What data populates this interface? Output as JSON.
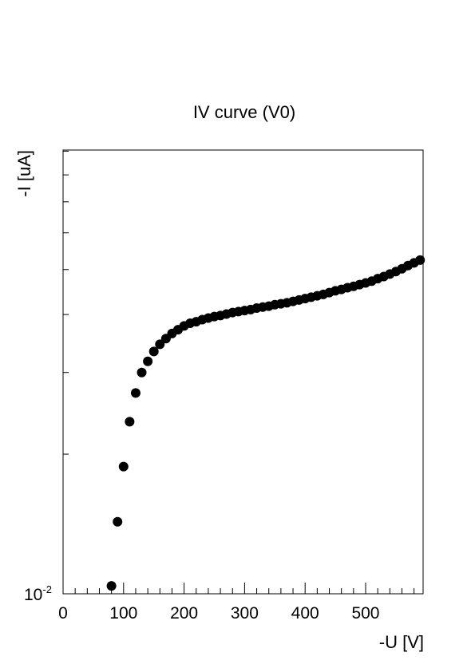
{
  "chart_data": {
    "type": "scatter",
    "title": "IV curve (V0)",
    "xlabel": "-U [V]",
    "ylabel": "-I [uA]",
    "xlim": [
      0,
      595
    ],
    "ylim": [
      0.01,
      0.0905
    ],
    "y_scale": "log",
    "grid": false,
    "legend": "none",
    "marker_color": "#000000",
    "x_ticks": [
      "0",
      "100",
      "200",
      "300",
      "400",
      "500"
    ],
    "y_tick_label": {
      "base": "10",
      "exponent": "-2"
    },
    "x": [
      80,
      90,
      100,
      110,
      120,
      130,
      140,
      150,
      160,
      170,
      180,
      190,
      200,
      210,
      220,
      230,
      240,
      250,
      260,
      270,
      280,
      290,
      300,
      310,
      320,
      330,
      340,
      350,
      360,
      370,
      380,
      390,
      400,
      410,
      420,
      430,
      440,
      450,
      460,
      470,
      480,
      490,
      500,
      510,
      520,
      530,
      540,
      550,
      560,
      570,
      580,
      590
    ],
    "y": [
      0.0104,
      0.0143,
      0.0188,
      0.0235,
      0.0271,
      0.03,
      0.0317,
      0.0333,
      0.0345,
      0.0355,
      0.0364,
      0.0371,
      0.0378,
      0.0383,
      0.0386,
      0.039,
      0.0393,
      0.0396,
      0.0398,
      0.0401,
      0.0404,
      0.0406,
      0.0408,
      0.041,
      0.0413,
      0.0415,
      0.0417,
      0.042,
      0.0422,
      0.0424,
      0.0427,
      0.043,
      0.0433,
      0.0436,
      0.0439,
      0.0442,
      0.0446,
      0.045,
      0.0453,
      0.0457,
      0.046,
      0.0464,
      0.0468,
      0.0472,
      0.0478,
      0.0483,
      0.0489,
      0.0495,
      0.0502,
      0.051,
      0.0517,
      0.0524
    ]
  }
}
